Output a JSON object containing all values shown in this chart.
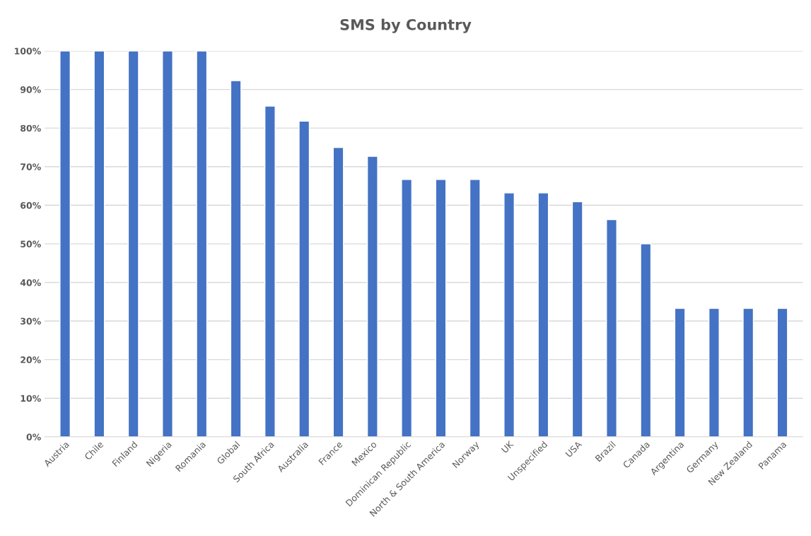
{
  "chart_data": {
    "type": "bar",
    "title": "SMS by Country",
    "categories": [
      "Austria",
      "Chile",
      "Finland",
      "Nigeria",
      "Romania",
      "Global",
      "South Africa",
      "Australia",
      "France",
      "Mexico",
      "Dominican Republic",
      "North & South America",
      "Norway",
      "UK",
      "Unspecified",
      "USA",
      "Brazil",
      "Canada",
      "Argentina",
      "Germany",
      "New Zealand",
      "Panama"
    ],
    "values": [
      100,
      100,
      100,
      100,
      100,
      92.3,
      85.7,
      81.8,
      75,
      72.7,
      66.7,
      66.7,
      66.7,
      63.2,
      63.2,
      60.9,
      56.3,
      50,
      33.3,
      33.3,
      33.3,
      33.3
    ],
    "color": "#4472c4",
    "ylim": [
      0,
      100
    ],
    "yticks": [
      {
        "value": 0,
        "label": "0%"
      },
      {
        "value": 10,
        "label": "10%"
      },
      {
        "value": 20,
        "label": "20%"
      },
      {
        "value": 30,
        "label": "30%"
      },
      {
        "value": 40,
        "label": "40%"
      },
      {
        "value": 50,
        "label": "50%"
      },
      {
        "value": 60,
        "label": "60%"
      },
      {
        "value": 70,
        "label": "70%"
      },
      {
        "value": 80,
        "label": "80%"
      },
      {
        "value": 90,
        "label": "90%"
      },
      {
        "value": 100,
        "label": "100%"
      }
    ],
    "grid": "y"
  }
}
